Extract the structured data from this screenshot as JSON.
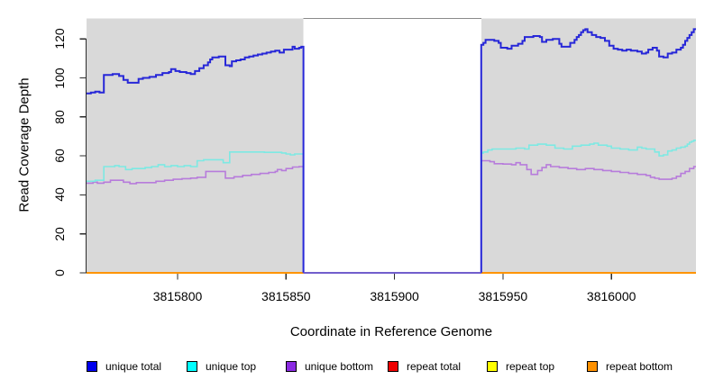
{
  "ui": {
    "ylabel": "Read Coverage Depth",
    "xlabel": "Coordinate in Reference Genome"
  },
  "chart_data": {
    "type": "line",
    "style": "step-coverage-plot",
    "title": "",
    "xlabel": "Coordinate in Reference Genome",
    "ylabel": "Read Coverage Depth",
    "xlim": [
      3815758,
      3816039
    ],
    "ylim": [
      0,
      130.5
    ],
    "x_ticks": [
      3815800,
      3815850,
      3815900,
      3815950,
      3816000
    ],
    "y_ticks": [
      0,
      20,
      40,
      60,
      80,
      100,
      120
    ],
    "grid": false,
    "plot_background": "#d9d9d9",
    "gap_region": {
      "start": 3815858,
      "end": 3815940,
      "fill": "#ffffff",
      "top_border": "#8a8a8a"
    },
    "colors": {
      "axis": "#2b2b2b",
      "gap_zero_line": "#5d55e8"
    },
    "series": [
      {
        "name": "repeat total",
        "color": "#ee0000",
        "line_width": 1.8,
        "segments": [
          [
            [
              3815758,
              0
            ],
            [
              3816039,
              0
            ]
          ]
        ]
      },
      {
        "name": "repeat top",
        "color": "#ffff00",
        "line_width": 1.8,
        "segments": [
          [
            [
              3815758,
              0
            ],
            [
              3816039,
              0
            ]
          ]
        ]
      },
      {
        "name": "repeat bottom",
        "color": "#ff8c00",
        "line_width": 1.8,
        "segments": [
          [
            [
              3815758,
              0
            ],
            [
              3816039,
              0
            ]
          ]
        ]
      },
      {
        "name": "unique bottom",
        "color": "#b77cdb",
        "line_width": 1.6,
        "segments": [
          [
            [
              3815758,
              46
            ],
            [
              3815761,
              46.5
            ],
            [
              3815763,
              46
            ],
            [
              3815766,
              46.5
            ],
            [
              3815769,
              47.5
            ],
            [
              3815772,
              47.5
            ],
            [
              3815775,
              46.5
            ],
            [
              3815778,
              45.8
            ],
            [
              3815781,
              46.3
            ],
            [
              3815786,
              46.3
            ],
            [
              3815790,
              47
            ],
            [
              3815794,
              47.5
            ],
            [
              3815798,
              48
            ],
            [
              3815802,
              48.3
            ],
            [
              3815806,
              48.6
            ],
            [
              3815809,
              49
            ],
            [
              3815813,
              52
            ],
            [
              3815818,
              52
            ],
            [
              3815822,
              48.6
            ],
            [
              3815826,
              49.3
            ],
            [
              3815830,
              50
            ],
            [
              3815834,
              50.5
            ],
            [
              3815838,
              51
            ],
            [
              3815842,
              51.5
            ],
            [
              3815845,
              52
            ],
            [
              3815846,
              53
            ],
            [
              3815848,
              52.5
            ],
            [
              3815850,
              53.5
            ],
            [
              3815853,
              54.3
            ],
            [
              3815856,
              54.5
            ],
            [
              3815858,
              0
            ]
          ],
          [
            [
              3815940,
              0
            ],
            [
              3815940,
              57.5
            ],
            [
              3815944,
              57
            ],
            [
              3815946,
              56
            ],
            [
              3815950,
              55.8
            ],
            [
              3815954,
              55.5
            ],
            [
              3815956,
              56.5
            ],
            [
              3815958,
              55.5
            ],
            [
              3815961,
              53
            ],
            [
              3815963,
              50.5
            ],
            [
              3815966,
              52.5
            ],
            [
              3815968,
              54
            ],
            [
              3815970,
              55.5
            ],
            [
              3815972,
              54.5
            ],
            [
              3815976,
              54
            ],
            [
              3815980,
              53.5
            ],
            [
              3815984,
              53
            ],
            [
              3815988,
              53.5
            ],
            [
              3815992,
              53
            ],
            [
              3815996,
              52.5
            ],
            [
              3816000,
              52
            ],
            [
              3816004,
              51.5
            ],
            [
              3816008,
              51
            ],
            [
              3816012,
              50.5
            ],
            [
              3816016,
              50
            ],
            [
              3816018,
              49
            ],
            [
              3816020,
              48.5
            ],
            [
              3816022,
              48
            ],
            [
              3816026,
              48
            ],
            [
              3816028,
              48.5
            ],
            [
              3816030,
              49.5
            ],
            [
              3816032,
              51
            ],
            [
              3816034,
              52
            ],
            [
              3816036,
              53.5
            ],
            [
              3816038,
              54.5
            ],
            [
              3816039,
              54.5
            ]
          ]
        ]
      },
      {
        "name": "unique top",
        "color": "#7de9e3",
        "line_width": 1.6,
        "segments": [
          [
            [
              3815758,
              47
            ],
            [
              3815762,
              47.5
            ],
            [
              3815766,
              54.5
            ],
            [
              3815769,
              54.5
            ],
            [
              3815771,
              55
            ],
            [
              3815773,
              54.5
            ],
            [
              3815776,
              53
            ],
            [
              3815779,
              53.5
            ],
            [
              3815782,
              53.5
            ],
            [
              3815785,
              54
            ],
            [
              3815788,
              54.5
            ],
            [
              3815791,
              55.5
            ],
            [
              3815794,
              54.5
            ],
            [
              3815797,
              55
            ],
            [
              3815800,
              54.5
            ],
            [
              3815803,
              55
            ],
            [
              3815806,
              54.5
            ],
            [
              3815809,
              57.5
            ],
            [
              3815812,
              58
            ],
            [
              3815818,
              58
            ],
            [
              3815821,
              56.5
            ],
            [
              3815824,
              62
            ],
            [
              3815832,
              62
            ],
            [
              3815840,
              61.8
            ],
            [
              3815848,
              61.5
            ],
            [
              3815850,
              61
            ],
            [
              3815852,
              60.5
            ],
            [
              3815854,
              61
            ],
            [
              3815858,
              0
            ]
          ],
          [
            [
              3815940,
              0
            ],
            [
              3815940,
              61.5
            ],
            [
              3815941,
              62
            ],
            [
              3815943,
              63
            ],
            [
              3815945,
              63.5
            ],
            [
              3815952,
              63.5
            ],
            [
              3815956,
              64
            ],
            [
              3815960,
              63.5
            ],
            [
              3815962,
              65.5
            ],
            [
              3815966,
              66
            ],
            [
              3815970,
              65.5
            ],
            [
              3815974,
              64
            ],
            [
              3815978,
              63.5
            ],
            [
              3815982,
              65
            ],
            [
              3815986,
              65.5
            ],
            [
              3815990,
              66
            ],
            [
              3815992,
              66.5
            ],
            [
              3815994,
              65.5
            ],
            [
              3815998,
              65
            ],
            [
              3816000,
              64
            ],
            [
              3816004,
              63.5
            ],
            [
              3816008,
              63
            ],
            [
              3816012,
              64.5
            ],
            [
              3816014,
              64
            ],
            [
              3816016,
              63.5
            ],
            [
              3816020,
              62
            ],
            [
              3816022,
              60
            ],
            [
              3816024,
              60.5
            ],
            [
              3816026,
              62.5
            ],
            [
              3816028,
              63
            ],
            [
              3816030,
              64
            ],
            [
              3816032,
              64.5
            ],
            [
              3816034,
              65
            ],
            [
              3816035,
              66
            ],
            [
              3816036,
              67
            ],
            [
              3816037,
              67.5
            ],
            [
              3816038,
              68
            ],
            [
              3816039,
              68
            ]
          ]
        ]
      },
      {
        "name": "unique total",
        "color": "#2727d8",
        "line_width": 2,
        "segments": [
          [
            [
              3815758,
              92
            ],
            [
              3815760,
              92.5
            ],
            [
              3815762,
              93
            ],
            [
              3815764,
              92.5
            ],
            [
              3815766,
              101.5
            ],
            [
              3815770,
              102
            ],
            [
              3815773,
              101
            ],
            [
              3815775,
              99
            ],
            [
              3815777,
              97.5
            ],
            [
              3815780,
              97.5
            ],
            [
              3815782,
              99.5
            ],
            [
              3815784,
              100
            ],
            [
              3815787,
              100.5
            ],
            [
              3815790,
              101.5
            ],
            [
              3815793,
              102.5
            ],
            [
              3815796,
              103
            ],
            [
              3815797,
              104.5
            ],
            [
              3815799,
              103.5
            ],
            [
              3815801,
              103
            ],
            [
              3815804,
              102.5
            ],
            [
              3815806,
              102
            ],
            [
              3815808,
              103.5
            ],
            [
              3815810,
              105
            ],
            [
              3815812,
              106.5
            ],
            [
              3815814,
              108
            ],
            [
              3815815,
              109.5
            ],
            [
              3815816,
              110.5
            ],
            [
              3815819,
              111
            ],
            [
              3815822,
              106.5
            ],
            [
              3815824,
              106
            ],
            [
              3815825,
              108.5
            ],
            [
              3815827,
              109
            ],
            [
              3815829,
              109.5
            ],
            [
              3815831,
              110.5
            ],
            [
              3815833,
              111
            ],
            [
              3815835,
              111.5
            ],
            [
              3815837,
              112
            ],
            [
              3815839,
              112.5
            ],
            [
              3815841,
              113
            ],
            [
              3815843,
              113.5
            ],
            [
              3815845,
              114
            ],
            [
              3815847,
              113
            ],
            [
              3815849,
              114.5
            ],
            [
              3815852,
              114.5
            ],
            [
              3815853,
              116
            ],
            [
              3815854,
              115
            ],
            [
              3815856,
              115.5
            ],
            [
              3815857,
              116
            ],
            [
              3815858,
              0
            ]
          ],
          [
            [
              3815940,
              0
            ],
            [
              3815940,
              117
            ],
            [
              3815941,
              118
            ],
            [
              3815942,
              119.5
            ],
            [
              3815946,
              119
            ],
            [
              3815948,
              118
            ],
            [
              3815949,
              115.5
            ],
            [
              3815952,
              115
            ],
            [
              3815954,
              116.5
            ],
            [
              3815957,
              117.5
            ],
            [
              3815959,
              119
            ],
            [
              3815960,
              121
            ],
            [
              3815964,
              121.5
            ],
            [
              3815967,
              121
            ],
            [
              3815968,
              118.5
            ],
            [
              3815970,
              119.5
            ],
            [
              3815973,
              120
            ],
            [
              3815976,
              117.5
            ],
            [
              3815977,
              116
            ],
            [
              3815981,
              118
            ],
            [
              3815983,
              119.5
            ],
            [
              3815984,
              121
            ],
            [
              3815985,
              122
            ],
            [
              3815986,
              123.5
            ],
            [
              3815987,
              124.5
            ],
            [
              3815988,
              125
            ],
            [
              3815989,
              123.5
            ],
            [
              3815991,
              122
            ],
            [
              3815993,
              121
            ],
            [
              3815995,
              120.5
            ],
            [
              3815997,
              119
            ],
            [
              3815999,
              116.5
            ],
            [
              3816001,
              115
            ],
            [
              3816003,
              114.5
            ],
            [
              3816005,
              114
            ],
            [
              3816007,
              114.5
            ],
            [
              3816009,
              114
            ],
            [
              3816012,
              113.5
            ],
            [
              3816014,
              112.5
            ],
            [
              3816016,
              113
            ],
            [
              3816017,
              114.5
            ],
            [
              3816019,
              115.5
            ],
            [
              3816021,
              114
            ],
            [
              3816022,
              111
            ],
            [
              3816024,
              110.5
            ],
            [
              3816026,
              112.5
            ],
            [
              3816028,
              113
            ],
            [
              3816030,
              114.5
            ],
            [
              3816032,
              115.5
            ],
            [
              3816033,
              117
            ],
            [
              3816034,
              119
            ],
            [
              3816035,
              120.5
            ],
            [
              3816036,
              122
            ],
            [
              3816037,
              123.5
            ],
            [
              3816038,
              125
            ],
            [
              3816039,
              125
            ]
          ]
        ]
      }
    ],
    "legend": [
      {
        "label": "unique total",
        "color": "#0000ee"
      },
      {
        "label": "unique top",
        "color": "#00ffff"
      },
      {
        "label": "unique bottom",
        "color": "#8b2be2"
      },
      {
        "label": "repeat total",
        "color": "#ee0000"
      },
      {
        "label": "repeat top",
        "color": "#ffff00"
      },
      {
        "label": "repeat bottom",
        "color": "#ff9100"
      }
    ],
    "legend_position": "bottom"
  }
}
